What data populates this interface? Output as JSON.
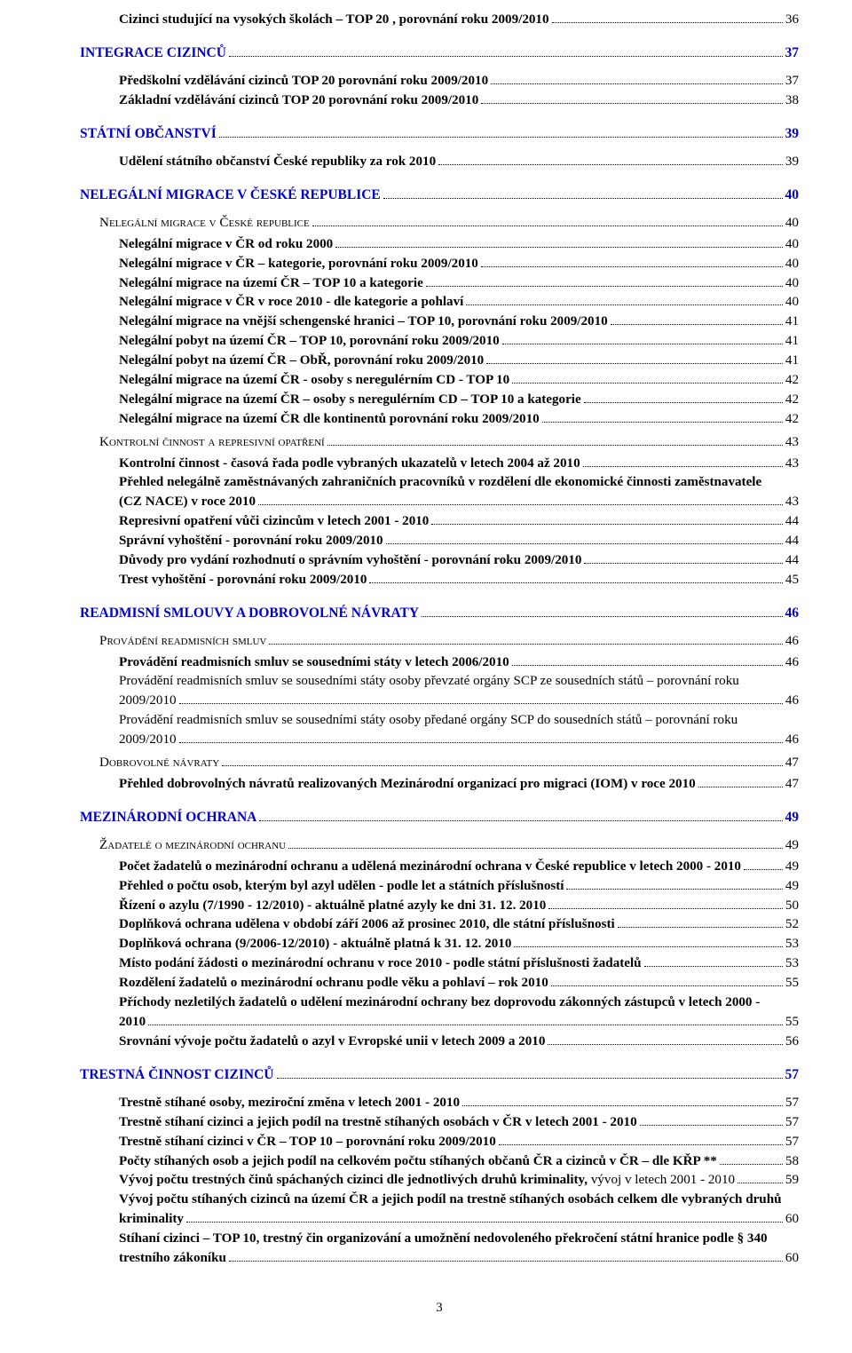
{
  "entries": [
    {
      "level": 3,
      "bold": true,
      "text": "Cizinci  studující na vysokých školách – TOP 20 ,  porovnání roku 2009/2010",
      "page": "36"
    },
    {
      "level": 1,
      "blue": true,
      "bold": true,
      "text": "INTEGRACE CIZINCŮ",
      "page": "37"
    },
    {
      "level": 3,
      "bold": true,
      "text": "Předškolní vzdělávání  cizinců   TOP 20  porovnání roku 2009/2010",
      "page": "37"
    },
    {
      "level": 3,
      "bold": true,
      "text": "Základní vzdělávání cizinců  TOP 20 porovnání roku 2009/2010",
      "page": "38"
    },
    {
      "level": 1,
      "blue": true,
      "bold": true,
      "text": "STÁTNÍ OBČANSTVÍ",
      "page": "39"
    },
    {
      "level": 3,
      "bold": true,
      "text": "Udělení státního občanství České republiky za rok 2010",
      "page": "39"
    },
    {
      "level": 1,
      "blue": true,
      "bold": true,
      "text": "NELEGÁLNÍ MIGRACE V ČESKÉ REPUBLICE",
      "page": "40"
    },
    {
      "level": 2,
      "smallcaps": true,
      "text": "Nelegální migrace v České republice",
      "page": "40"
    },
    {
      "level": 3,
      "bold": true,
      "text": "Nelegální migrace v ČR od roku 2000",
      "page": "40"
    },
    {
      "level": 3,
      "bold": true,
      "text": "Nelegální migrace v ČR – kategorie, porovnání roku 2009/2010",
      "page": "40"
    },
    {
      "level": 3,
      "bold": true,
      "text": "Nelegální migrace na území ČR – TOP 10 a kategorie",
      "page": "40"
    },
    {
      "level": 3,
      "bold": true,
      "text": "Nelegální migrace v ČR v roce 2010 - dle kategorie a pohlaví",
      "page": "40"
    },
    {
      "level": 3,
      "bold": true,
      "text": "Nelegální migrace na vnější schengenské hranici – TOP 10, porovnání roku 2009/2010",
      "page": "41"
    },
    {
      "level": 3,
      "bold": true,
      "text": "Nelegální pobyt na území ČR – TOP 10, porovnání roku 2009/2010",
      "page": "41"
    },
    {
      "level": 3,
      "bold": true,
      "text": "Nelegální pobyt na území ČR – ObŘ, porovnání roku 2009/2010",
      "page": "41"
    },
    {
      "level": 3,
      "bold": true,
      "text": "Nelegální migrace na území ČR - osoby s neregulérním CD - TOP 10",
      "page": "42"
    },
    {
      "level": 3,
      "bold": true,
      "text": "Nelegální migrace na území ČR – osoby s neregulérním CD – TOP 10 a kategorie",
      "page": "42"
    },
    {
      "level": 3,
      "bold": true,
      "text": "Nelegální migrace na území ČR dle kontinentů  porovnání roku 2009/2010",
      "page": "42"
    },
    {
      "level": 2,
      "smallcaps": true,
      "text": "Kontrolní činnost a represivní opatření",
      "page": "43"
    },
    {
      "level": 3,
      "bold": true,
      "text": "Kontrolní činnost - časová řada podle vybraných ukazatelů v  letech 2004 až 2010",
      "page": "43"
    },
    {
      "level": 3,
      "bold": true,
      "multiline": true,
      "first": "Přehled nelegálně zaměstnávaných zahraničních pracovníků v rozdělení dle ekonomické činnosti zaměstnavatele",
      "text": "(CZ NACE) v roce 2010",
      "page": "43"
    },
    {
      "level": 3,
      "bold": true,
      "text": "Represivní opatření vůči cizincům v letech 2001 - 2010",
      "page": "44"
    },
    {
      "level": 3,
      "bold": true,
      "text": "Správní vyhoštění - porovnání roku 2009/2010",
      "page": "44"
    },
    {
      "level": 3,
      "bold": true,
      "text": "Důvody pro vydání rozhodnutí o správním vyhoštění - porovnání roku  2009/2010",
      "page": "44"
    },
    {
      "level": 3,
      "bold": true,
      "text": "Trest vyhoštění - porovnání roku 2009/2010",
      "page": "45"
    },
    {
      "level": 1,
      "blue": true,
      "bold": true,
      "text": "READMISNÍ SMLOUVY A DOBROVOLNÉ NÁVRATY",
      "page": "46"
    },
    {
      "level": 2,
      "smallcaps": true,
      "text": "Provádění readmisních smluv",
      "page": "46"
    },
    {
      "level": 3,
      "bold": true,
      "text": "Provádění readmisních smluv se sousedními státy  v letech 2006/2010",
      "page": "46"
    },
    {
      "level": 3,
      "multiline": true,
      "first": "Provádění readmisních smluv se sousedními státy   osoby převzaté orgány SCP  ze sousedních států – porovnání roku",
      "text": "2009/2010",
      "page": "46"
    },
    {
      "level": 3,
      "multiline": true,
      "first": "Provádění readmisních smluv se sousedními státy   osoby předané orgány SCP do sousedních států – porovnání  roku",
      "text": "2009/2010",
      "page": "46"
    },
    {
      "level": 2,
      "smallcaps": true,
      "text": "Dobrovolné  návraty",
      "page": "47"
    },
    {
      "level": 3,
      "bold": true,
      "text": "Přehled dobrovolných návratů realizovaných Mezinárodní organizací pro migraci (IOM) v roce 2010",
      "page": "47"
    },
    {
      "level": 1,
      "blue": true,
      "bold": true,
      "text": "MEZINÁRODNÍ OCHRANA",
      "page": "49"
    },
    {
      "level": 2,
      "smallcaps": true,
      "text": "Žadatelé o mezinárodní ochranu",
      "page": "49"
    },
    {
      "level": 3,
      "bold": true,
      "text": "Počet žadatelů o mezinárodní ochranu a udělená mezinárodní ochrana  v České republice v letech 2000 - 2010",
      "page": "49"
    },
    {
      "level": 3,
      "bold": true,
      "text": "Přehled o počtu osob, kterým byl azyl udělen - podle let a státních příslušností",
      "page": "49"
    },
    {
      "level": 3,
      "bold": true,
      "text": "Řízení o azylu (7/1990 - 12/2010) - aktuálně platné azyly ke dni  31. 12.  2010",
      "page": "50"
    },
    {
      "level": 3,
      "bold": true,
      "text": "Doplňková ochrana  udělena v období  září  2006 až prosinec 2010, dle státní příslušnosti",
      "page": "52"
    },
    {
      "level": 3,
      "bold": true,
      "text": "Doplňková ochrana (9/2006-12/2010) - aktuálně platná k 31. 12. 2010",
      "page": "53"
    },
    {
      "level": 3,
      "bold": true,
      "text": "Místo podání žádosti o mezinárodní ochranu  v roce 2010 - podle státní příslušnosti žadatelů",
      "page": "53"
    },
    {
      "level": 3,
      "bold": true,
      "text": "Rozdělení žadatelů o mezinárodní ochranu podle věku a pohlaví – rok 2010",
      "page": "55"
    },
    {
      "level": 3,
      "bold": true,
      "multiline": true,
      "first": "Příchody nezletilých žadatelů o udělení mezinárodní ochrany bez doprovodu zákonných zástupců   v letech 2000 -",
      "text": "2010",
      "page": "55"
    },
    {
      "level": 3,
      "bold": true,
      "text": "Srovnání vývoje počtu žadatelů o azyl v Evropské unii v letech 2009 a 2010",
      "page": "56"
    },
    {
      "level": 1,
      "blue": true,
      "bold": true,
      "text": "TRESTNÁ ČINNOST CIZINCŮ",
      "page": "57"
    },
    {
      "level": 3,
      "bold": true,
      "text": "Trestně stíhané osoby,   meziroční změna v letech 2001 - 2010",
      "page": "57"
    },
    {
      "level": 3,
      "bold": true,
      "text": "Trestně stíhaní cizinci a jejich podíl na trestně stíhaných osobách v ČR v letech 2001 - 2010",
      "page": "57"
    },
    {
      "level": 3,
      "bold": true,
      "text": "Trestně stíhaní cizinci v ČR – TOP 10 – porovnání roku 2009/2010",
      "page": "57"
    },
    {
      "level": 3,
      "bold": true,
      "text": "Počty stíhaných osob a jejich podíl na celkovém počtu stíhaných občanů ČR a cizinců v ČR – dle KŘP **",
      "page": "58"
    },
    {
      "level": 3,
      "bold": true,
      "mixedtail": "vývoj v letech 2001 - 2010",
      "text": "Vývoj počtu trestných činů spáchaných cizinci dle jednotlivých druhů kriminality, ",
      "page": "59"
    },
    {
      "level": 3,
      "bold": true,
      "multiline": true,
      "first": "Vývoj počtu stíhaných cizinců na území ČR a jejich podíl na trestně stíhaných osobách celkem dle vybraných druhů",
      "text": "kriminality",
      "page": "60"
    },
    {
      "level": 3,
      "bold": true,
      "multiline": true,
      "first": "Stíhaní cizinci – TOP 10, trestný čin organizování a umožnění nedovoleného překročení státní hranice podle § 340",
      "text": "trestního zákoníku",
      "page": "60"
    }
  ],
  "pageNumber": "3"
}
